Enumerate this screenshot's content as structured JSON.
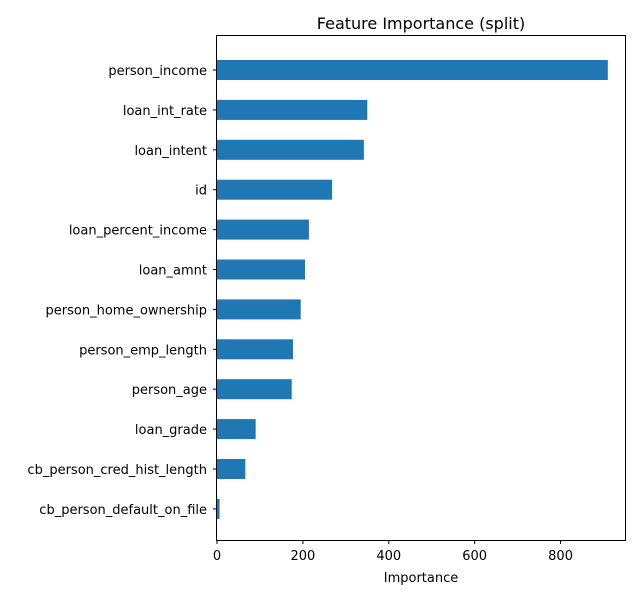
{
  "chart_data": {
    "type": "bar",
    "orientation": "horizontal",
    "title": "Feature Importance (split)",
    "xlabel": "Importance",
    "ylabel": "",
    "xlim": [
      0,
      950
    ],
    "xticks": [
      0,
      200,
      400,
      600,
      800
    ],
    "grid": false,
    "bar_color": "#1f77b4",
    "categories": [
      "person_income",
      "loan_int_rate",
      "loan_intent",
      "id",
      "loan_percent_income",
      "loan_amnt",
      "person_home_ownership",
      "person_emp_length",
      "person_age",
      "loan_grade",
      "cb_person_cred_hist_length",
      "cb_person_default_on_file"
    ],
    "values": [
      910,
      350,
      342,
      268,
      214,
      205,
      195,
      177,
      174,
      90,
      66,
      6
    ]
  }
}
